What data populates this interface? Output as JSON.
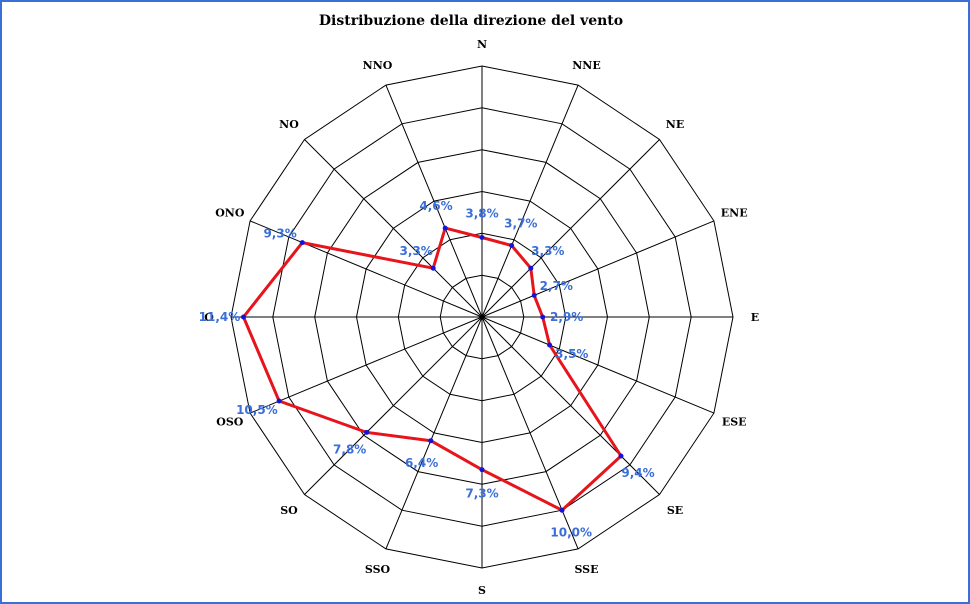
{
  "chart_data": {
    "type": "radar",
    "title": "Distribuzione della direzione del vento",
    "categories": [
      "N",
      "NNE",
      "NE",
      "ENE",
      "E",
      "ESE",
      "SE",
      "SSE",
      "S",
      "SSO",
      "SO",
      "OSO",
      "O",
      "ONO",
      "NO",
      "NNO"
    ],
    "values": [
      3.8,
      3.7,
      3.3,
      2.7,
      2.9,
      3.5,
      9.4,
      10.0,
      7.3,
      6.4,
      7.8,
      10.5,
      11.4,
      9.3,
      3.3,
      4.6
    ],
    "value_labels": [
      "3,8%",
      "3,7%",
      "3,3%",
      "2,7%",
      "2,9%",
      "3,5%",
      "9,4%",
      "10,0%",
      "7,3%",
      "6,4%",
      "7,8%",
      "10,5%",
      "11,4%",
      "9,3%",
      "3,3%",
      "4,6%"
    ],
    "rlim": [
      0,
      12
    ],
    "rings": 6,
    "grid": true,
    "line_color": "#e8141c",
    "marker_color": "#1414d8",
    "label_color": "#3a6fd8"
  }
}
